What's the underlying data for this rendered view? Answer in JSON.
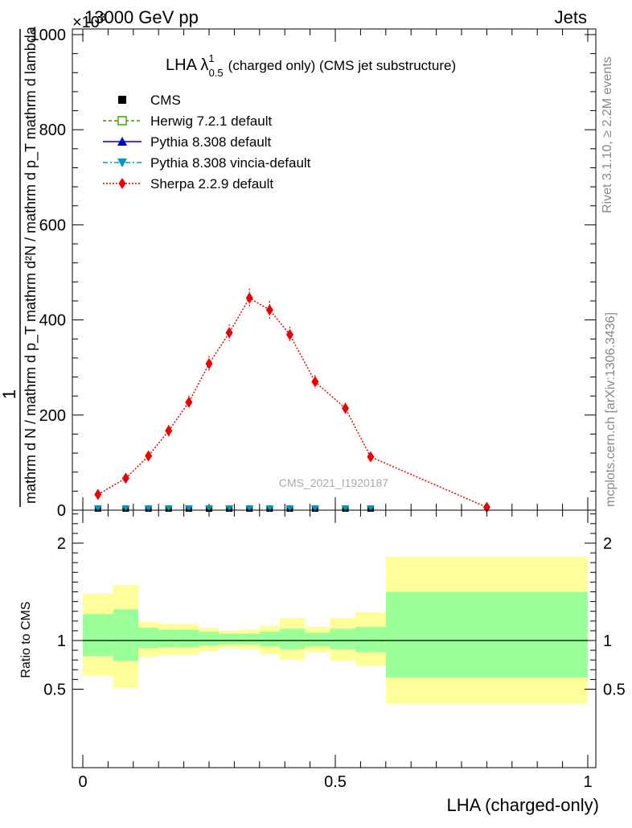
{
  "header": {
    "energy": "13000 GeV pp",
    "category": "Jets",
    "exponent": "×10",
    "exponent_power": "3"
  },
  "side_labels": {
    "rivet": "Rivet 3.1.10, ≥ 2.2M events",
    "mcplots": "mcplots.cern.ch [arXiv:1306.3436]"
  },
  "colors": {
    "data": "#000000",
    "herwig": "#339900",
    "pythia": "#0000cc",
    "vincia": "#0099bb",
    "sherpa": "#ee0000",
    "band_inner": "#99ff99",
    "band_outer": "#ffff99"
  },
  "chart_data": [
    {
      "type": "scatter",
      "title_main": "LHA λ",
      "title_sup": "1",
      "title_sub": "0.5",
      "title_rest": "(charged only) (CMS jet substructure)",
      "watermark": "CMS_2021_I1920187",
      "ylabel_numerator": "1",
      "ylabel_denominator": "mathrm d N / mathrm d p_T",
      "ylabel_right": "mathrm d²N / mathrm d p_T mathrm d lambda",
      "ylim": [
        0,
        1000
      ],
      "yticks": [
        0,
        200,
        400,
        600,
        800,
        1000
      ],
      "ytick_labels": [
        "0",
        "200",
        "400",
        "600",
        "800",
        "1000"
      ],
      "xlim": [
        -0.02,
        1.0
      ],
      "legend_position": "top-left",
      "legend": [
        "CMS",
        "Herwig 7.2.1 default",
        "Pythia 8.308 default",
        "Pythia 8.308 vincia-default",
        "Sherpa 2.2.9 default"
      ],
      "series": [
        {
          "name": "Sherpa 2.2.9 default",
          "x": [
            0.03,
            0.085,
            0.13,
            0.17,
            0.21,
            0.25,
            0.29,
            0.33,
            0.37,
            0.41,
            0.46,
            0.52,
            0.57,
            0.8
          ],
          "values": [
            33,
            67,
            114,
            167,
            227,
            308,
            373,
            446,
            421,
            369,
            270,
            214,
            112,
            6
          ],
          "errors": [
            7,
            8,
            10,
            12,
            14,
            16,
            18,
            20,
            19,
            17,
            14,
            12,
            9,
            3
          ]
        },
        {
          "name": "CMS",
          "x": [
            0.03,
            0.085,
            0.13,
            0.17,
            0.21,
            0.25,
            0.29,
            0.33,
            0.37,
            0.41,
            0.46,
            0.52,
            0.57
          ],
          "values": [
            0,
            0,
            0,
            0,
            0,
            0,
            0,
            0,
            0,
            0,
            0,
            0,
            0
          ]
        },
        {
          "name": "Pythia 8.308 vincia-default",
          "x": [
            0.03,
            0.085,
            0.13,
            0.17,
            0.21,
            0.25,
            0.29,
            0.33,
            0.37,
            0.41,
            0.46,
            0.52,
            0.57
          ],
          "values": [
            0,
            0,
            0,
            0,
            0,
            0,
            0,
            0,
            0,
            0,
            0,
            0,
            0
          ]
        }
      ]
    },
    {
      "type": "area",
      "ylabel": "Ratio to CMS",
      "xlabel": "LHA (charged-only)",
      "ylim": [
        0.35,
        2.35
      ],
      "yticks": [
        0.5,
        1,
        2
      ],
      "ytick_labels": [
        "0.5",
        "1",
        "2"
      ],
      "xlim": [
        -0.02,
        1.0
      ],
      "xticks": [
        0,
        0.5,
        1
      ],
      "xtick_labels": [
        "0",
        "0.5",
        "1"
      ],
      "reference_line": 1,
      "bins": [
        {
          "x0": 0.0,
          "x1": 0.06,
          "inner": [
            0.84,
            1.27
          ],
          "outer": [
            0.64,
            1.48
          ]
        },
        {
          "x0": 0.06,
          "x1": 0.11,
          "inner": [
            0.79,
            1.32
          ],
          "outer": [
            0.51,
            1.57
          ]
        },
        {
          "x0": 0.11,
          "x1": 0.15,
          "inner": [
            0.92,
            1.13
          ],
          "outer": [
            0.83,
            1.19
          ]
        },
        {
          "x0": 0.15,
          "x1": 0.19,
          "inner": [
            0.93,
            1.11
          ],
          "outer": [
            0.85,
            1.17
          ]
        },
        {
          "x0": 0.19,
          "x1": 0.23,
          "inner": [
            0.93,
            1.11
          ],
          "outer": [
            0.85,
            1.17
          ]
        },
        {
          "x0": 0.23,
          "x1": 0.27,
          "inner": [
            0.95,
            1.09
          ],
          "outer": [
            0.89,
            1.13
          ]
        },
        {
          "x0": 0.27,
          "x1": 0.31,
          "inner": [
            0.96,
            1.07
          ],
          "outer": [
            0.92,
            1.1
          ]
        },
        {
          "x0": 0.31,
          "x1": 0.35,
          "inner": [
            0.96,
            1.07
          ],
          "outer": [
            0.91,
            1.11
          ]
        },
        {
          "x0": 0.35,
          "x1": 0.39,
          "inner": [
            0.94,
            1.09
          ],
          "outer": [
            0.86,
            1.15
          ]
        },
        {
          "x0": 0.39,
          "x1": 0.44,
          "inner": [
            0.91,
            1.12
          ],
          "outer": [
            0.8,
            1.23
          ]
        },
        {
          "x0": 0.44,
          "x1": 0.49,
          "inner": [
            0.94,
            1.08
          ],
          "outer": [
            0.88,
            1.14
          ]
        },
        {
          "x0": 0.49,
          "x1": 0.54,
          "inner": [
            0.91,
            1.12
          ],
          "outer": [
            0.79,
            1.23
          ]
        },
        {
          "x0": 0.54,
          "x1": 0.6,
          "inner": [
            0.88,
            1.14
          ],
          "outer": [
            0.74,
            1.29
          ]
        },
        {
          "x0": 0.6,
          "x1": 1.0,
          "inner": [
            0.62,
            1.5
          ],
          "outer": [
            0.35,
            1.86
          ]
        }
      ]
    }
  ]
}
